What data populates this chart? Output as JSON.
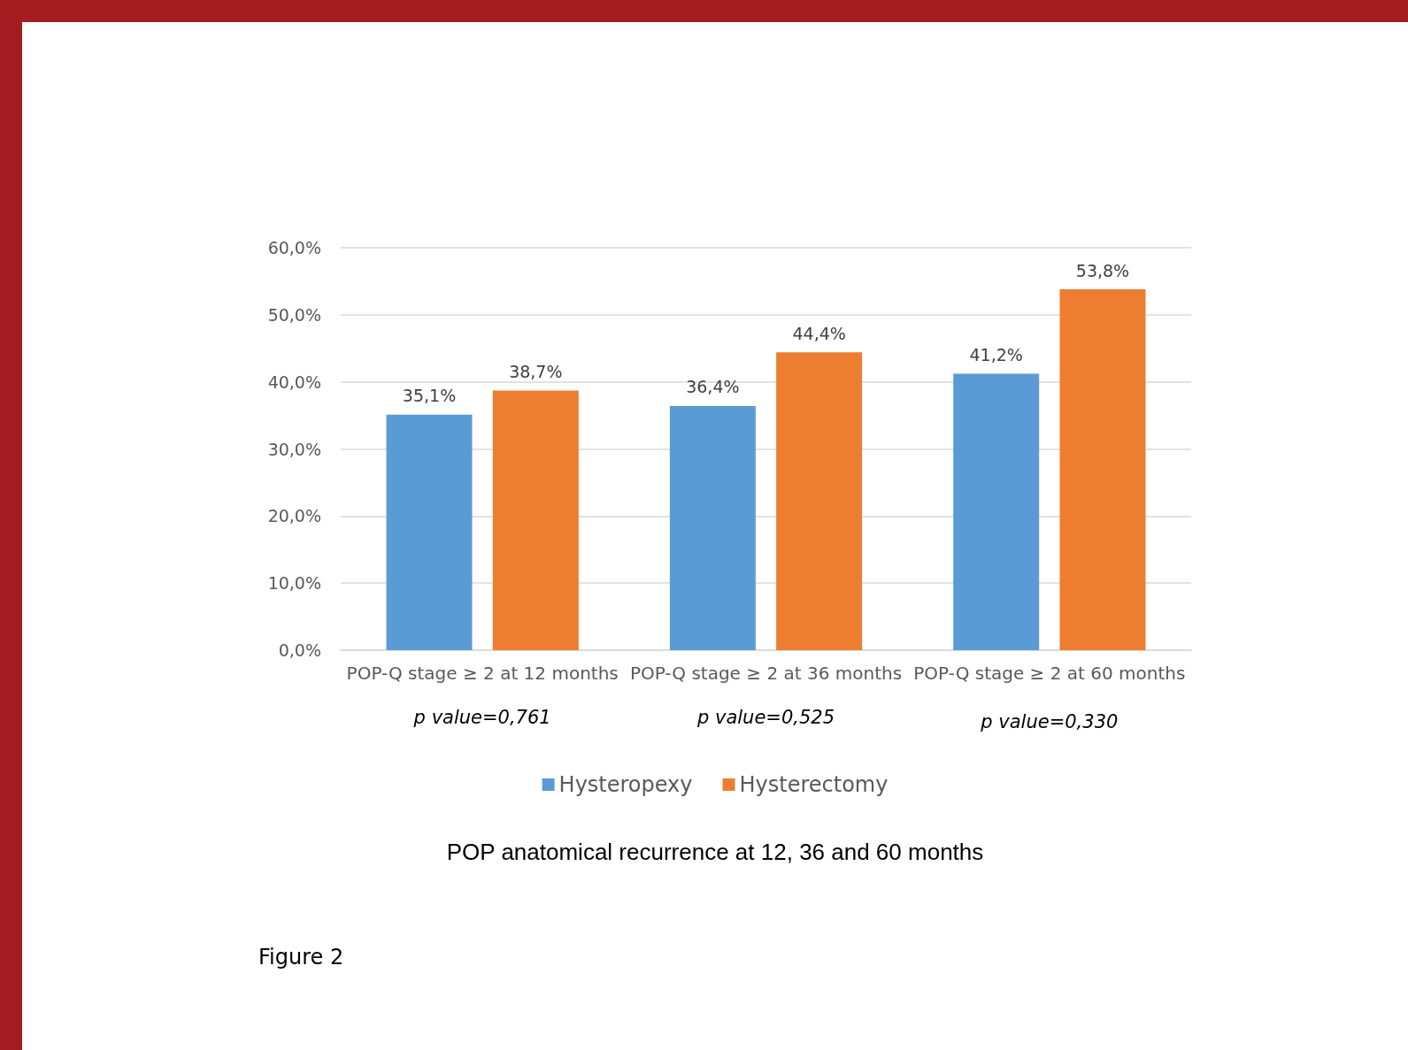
{
  "chart_data": {
    "type": "bar",
    "title": "POP anatomical recurrence at 12, 36 and 60 months",
    "categories": [
      "POP-Q stage ≥ 2 at 12 months",
      "POP-Q stage ≥ 2 at 36 months",
      "POP-Q stage ≥ 2 at 60 months"
    ],
    "series": [
      {
        "name": "Hysteropexy",
        "color": "#5b9bd5",
        "values": [
          35.1,
          36.4,
          41.2
        ],
        "value_labels": [
          "35,1%",
          "36,4%",
          "41,2%"
        ]
      },
      {
        "name": "Hysterectomy",
        "color": "#ed7d31",
        "values": [
          38.7,
          44.4,
          53.8
        ],
        "value_labels": [
          "38,7%",
          "44,4%",
          "53,8%"
        ]
      }
    ],
    "ylim": [
      0,
      60
    ],
    "yticks": [
      {
        "value": 0,
        "label": "0,0%"
      },
      {
        "value": 10,
        "label": "10,0%"
      },
      {
        "value": 20,
        "label": "20,0%"
      },
      {
        "value": 30,
        "label": "30,0%"
      },
      {
        "value": 40,
        "label": "40,0%"
      },
      {
        "value": 50,
        "label": "50,0%"
      },
      {
        "value": 60,
        "label": "60,0%"
      }
    ],
    "grid": "y",
    "legend": "bottom",
    "annotations": [
      "p value=0,761",
      "p value=0,525",
      "p value=0,330",
      "Figure 2"
    ]
  }
}
